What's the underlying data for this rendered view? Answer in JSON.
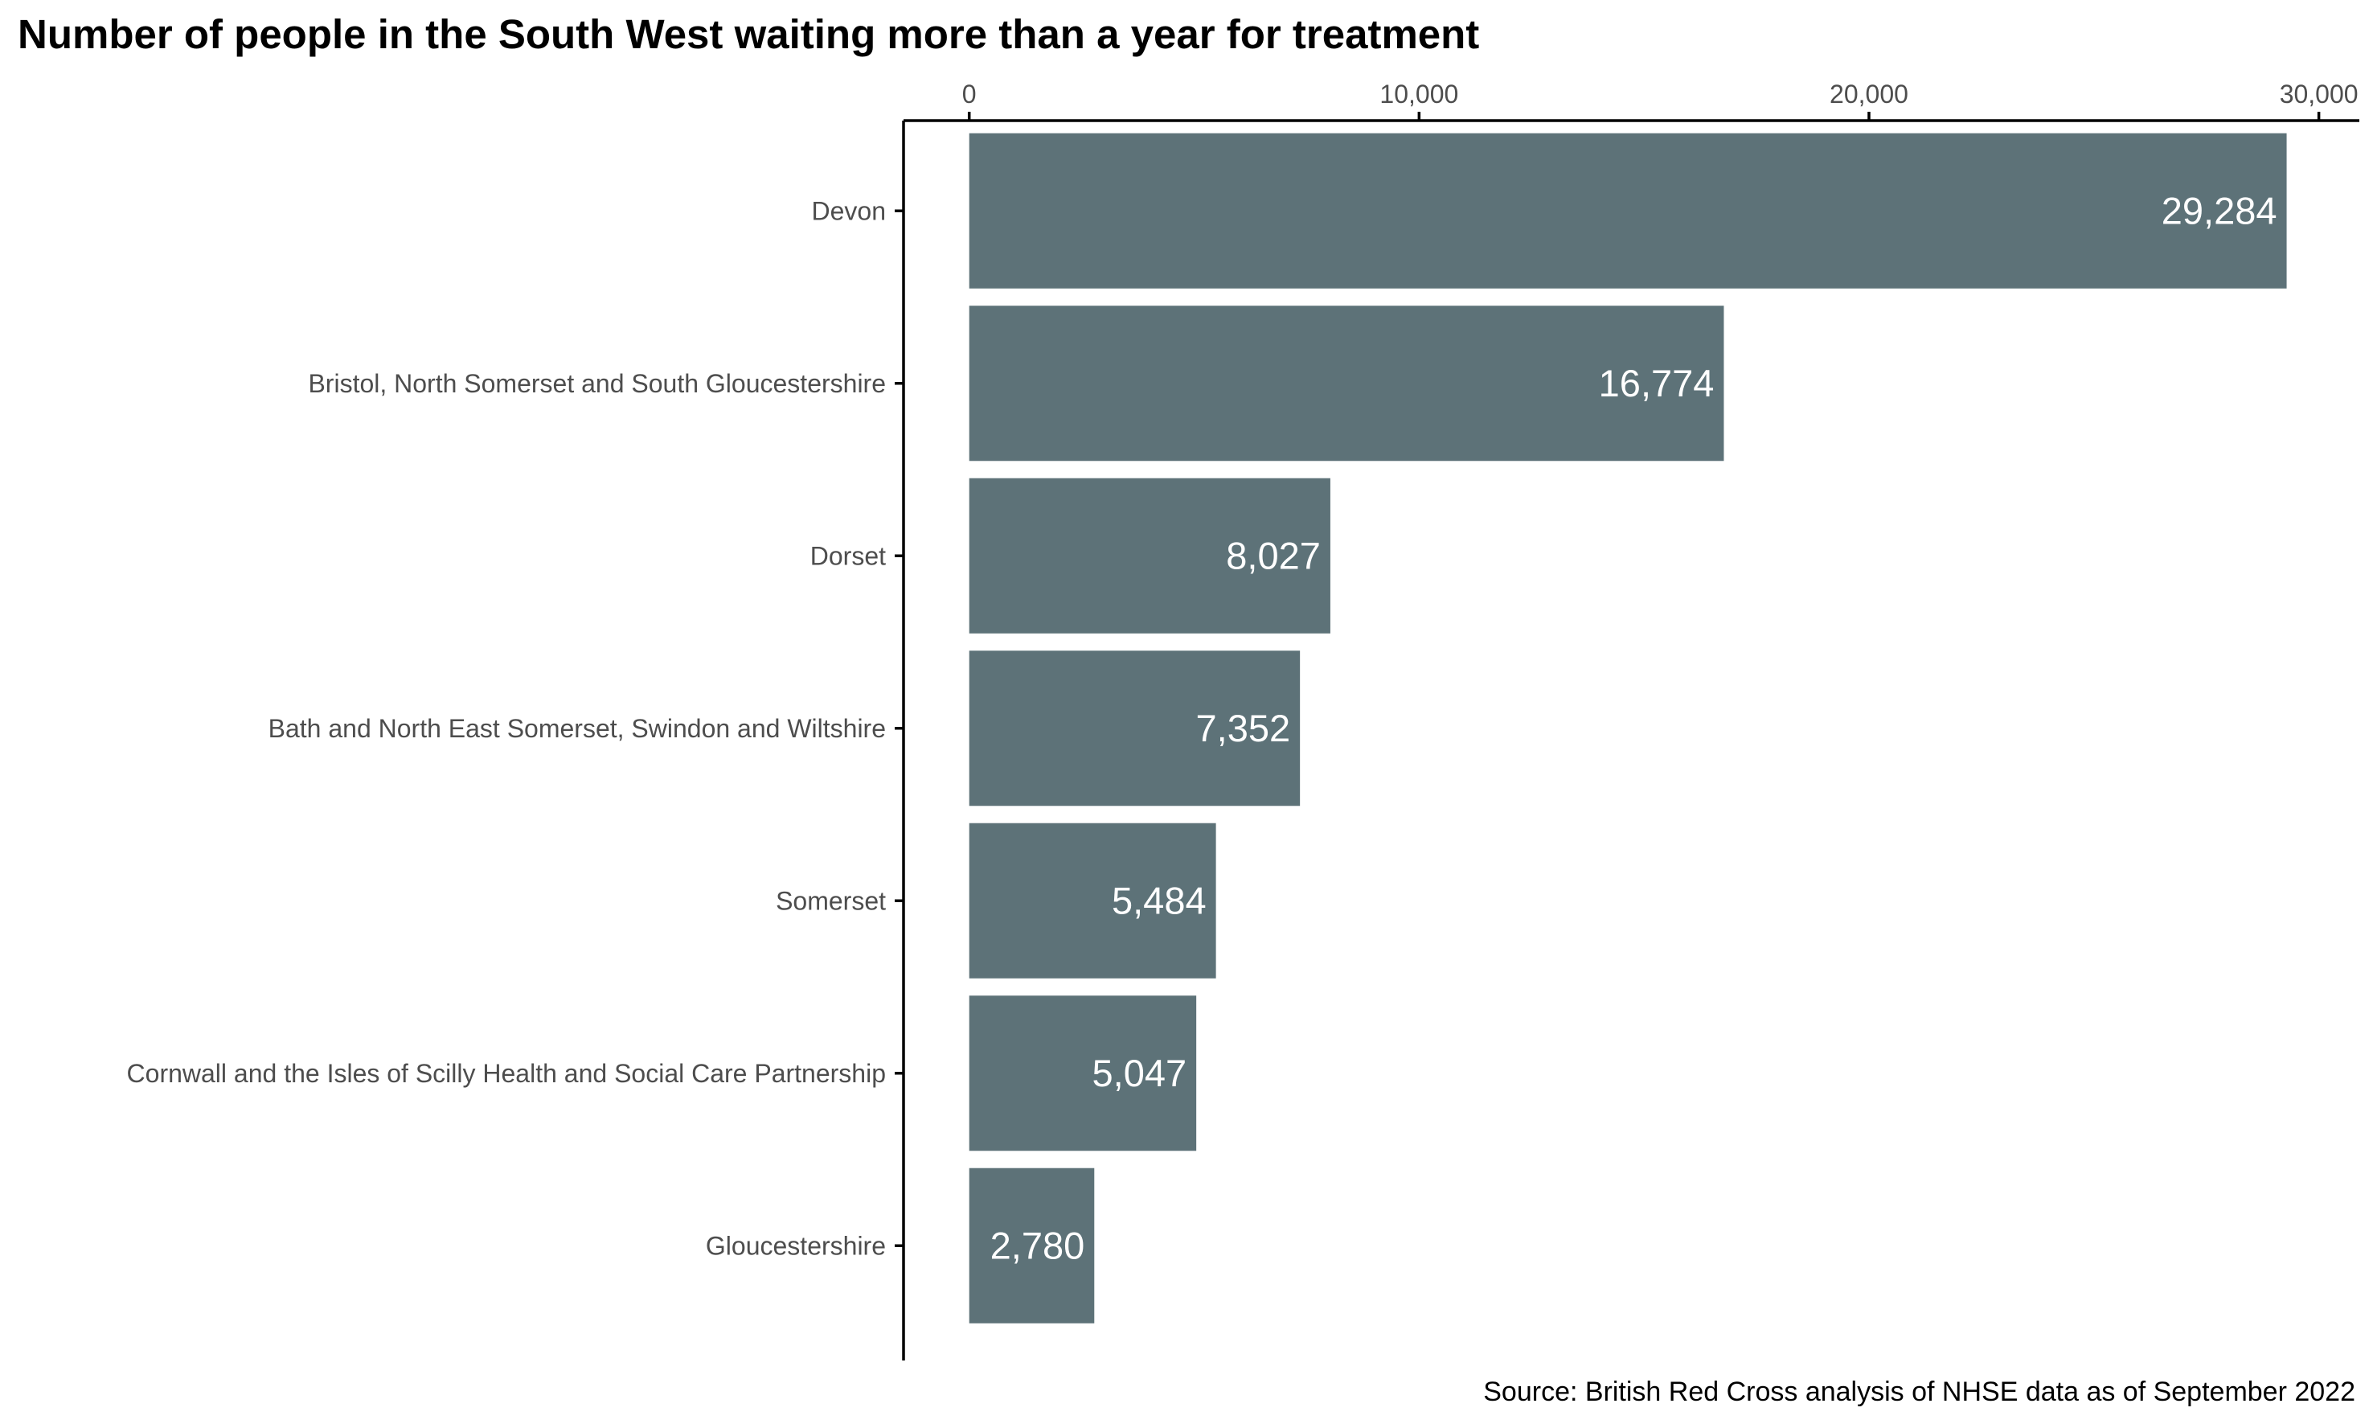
{
  "chart_data": {
    "type": "bar",
    "orientation": "horizontal",
    "title": "Number of people in the South West waiting more than a year for treatment",
    "categories": [
      "Devon",
      "Bristol, North Somerset and South Gloucestershire",
      "Dorset",
      "Bath and North East Somerset, Swindon and Wiltshire",
      "Somerset",
      "Cornwall and the Isles of Scilly Health and Social Care Partnership",
      "Gloucestershire"
    ],
    "values": [
      29284,
      16774,
      8027,
      7352,
      5484,
      5047,
      2780
    ],
    "value_labels": [
      "29,284",
      "16,774",
      "8,027",
      "7,352",
      "5,484",
      "5,047",
      "2,780"
    ],
    "x_axis": {
      "position": "top",
      "ticks": [
        0,
        10000,
        20000,
        30000
      ],
      "tick_labels": [
        "0",
        "10,000",
        "20,000",
        "30,000"
      ],
      "range": [
        -1460,
        30900
      ]
    },
    "xlabel": "",
    "ylabel": "",
    "grid": false,
    "legend": "none",
    "colors": {
      "bar": "#5d7278",
      "value_label": "#ffffff",
      "axis": "#000000",
      "tick_label": "#4d4d4d"
    },
    "source": "Source: British Red Cross analysis of NHSE data as of September 2022"
  }
}
